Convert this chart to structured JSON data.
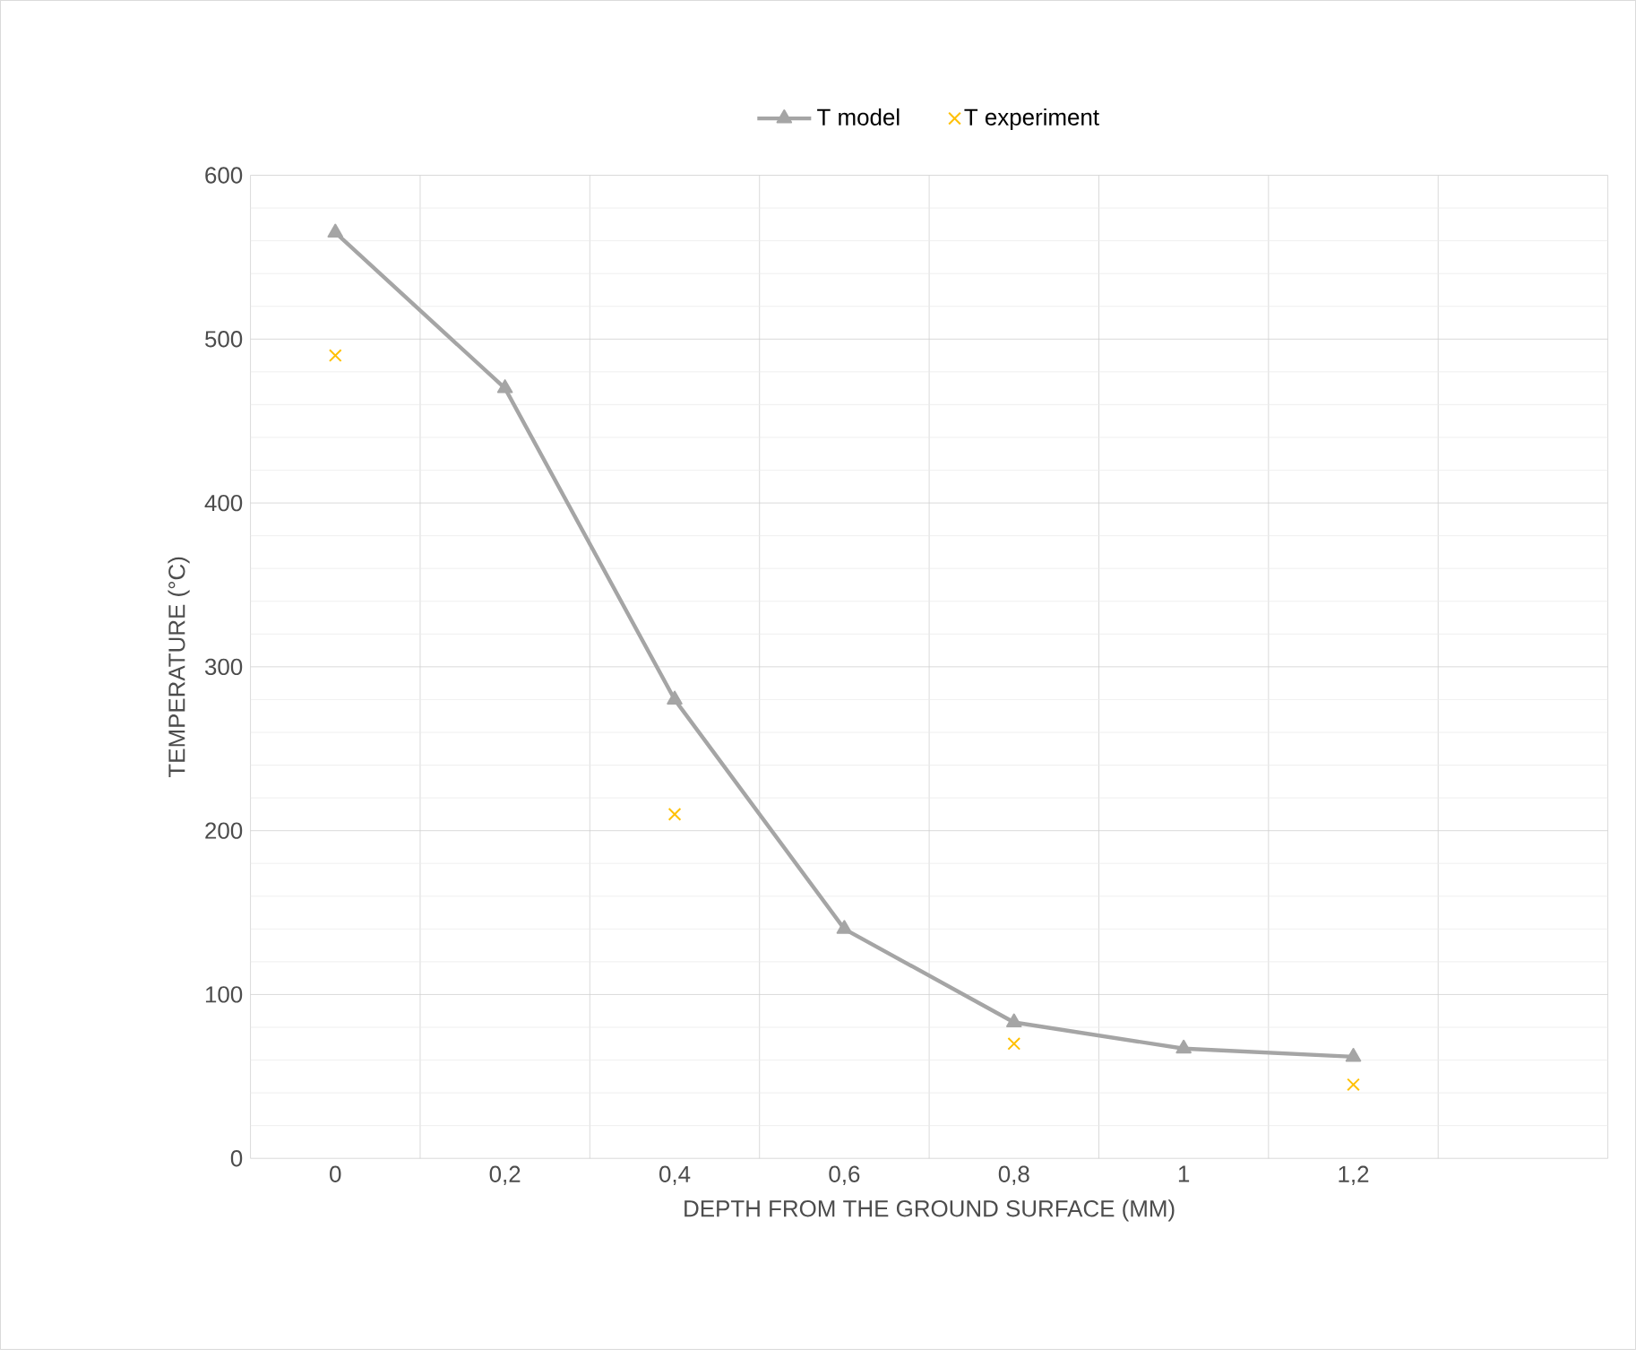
{
  "chart_data": {
    "type": "line",
    "xlabel": "DEPTH FROM THE GROUND SURFACE (MM)",
    "ylabel": "TEMPERATURE (°C)",
    "categories": [
      "0",
      "0,2",
      "0,4",
      "0,6",
      "0,8",
      "1",
      "1,2",
      null
    ],
    "series": [
      {
        "name": "T model",
        "color": "#a5a5a5",
        "marker": "triangle",
        "values": [
          565,
          470,
          280,
          140,
          83,
          67,
          62,
          null
        ]
      },
      {
        "name": "T experiment",
        "type": "scatter",
        "color": "#ffc000",
        "marker": "cross",
        "values": [
          490,
          null,
          210,
          null,
          70,
          null,
          45,
          null
        ]
      }
    ],
    "ylim": [
      0,
      600
    ],
    "yticks": [
      0,
      100,
      200,
      300,
      400,
      500,
      600
    ],
    "grid": true,
    "legend": "top"
  }
}
